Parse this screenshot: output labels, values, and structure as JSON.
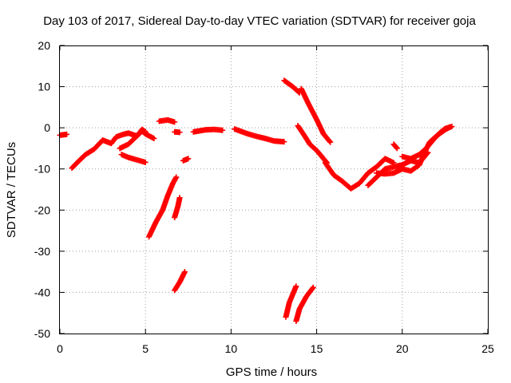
{
  "chart_data": {
    "type": "scatter",
    "title": "Day 103 of 2017, Sidereal Day-to-day VTEC variation (SDTVAR) for receiver goja",
    "xlabel": "GPS time / hours",
    "ylabel": "SDTVAR / TECUs",
    "xlim": [
      0,
      25
    ],
    "ylim": [
      -50,
      20
    ],
    "xticks": [
      0,
      5,
      10,
      15,
      20,
      25
    ],
    "yticks": [
      -50,
      -40,
      -30,
      -20,
      -10,
      0,
      10,
      20
    ],
    "grid": true,
    "marker": "plus",
    "color": "#ff0000",
    "series": [
      {
        "segments": [
          [
            [
              0.0,
              -1.8
            ],
            [
              0.4,
              -1.6
            ]
          ],
          [
            [
              0.7,
              -9.8
            ],
            [
              1.0,
              -8.5
            ],
            [
              1.5,
              -6.5
            ],
            [
              2.0,
              -5.2
            ],
            [
              2.5,
              -3.0
            ],
            [
              3.0,
              -3.8
            ],
            [
              3.3,
              -2.2
            ],
            [
              3.7,
              -1.6
            ],
            [
              4.0,
              -1.3
            ],
            [
              4.5,
              -2.0
            ],
            [
              4.8,
              -0.8
            ],
            [
              5.0,
              -1.5
            ],
            [
              5.5,
              -2.6
            ]
          ],
          [
            [
              3.5,
              -5.0
            ],
            [
              4.0,
              -4.0
            ],
            [
              4.5,
              -2.0
            ],
            [
              4.8,
              -0.4
            ],
            [
              5.0,
              -1.0
            ]
          ],
          [
            [
              3.6,
              -6.5
            ],
            [
              4.0,
              -7.2
            ],
            [
              4.5,
              -7.8
            ],
            [
              5.0,
              -8.4
            ]
          ],
          [
            [
              5.8,
              1.6
            ],
            [
              6.3,
              1.9
            ],
            [
              6.7,
              1.4
            ]
          ],
          [
            [
              6.7,
              -1.0
            ],
            [
              7.0,
              -1.1
            ]
          ],
          [
            [
              7.5,
              -7.5
            ],
            [
              7.2,
              -8.0
            ]
          ],
          [
            [
              7.8,
              -1.0
            ],
            [
              8.5,
              -0.5
            ],
            [
              9.0,
              -0.4
            ],
            [
              9.5,
              -0.6
            ]
          ],
          [
            [
              10.2,
              -0.3
            ],
            [
              11.0,
              -1.5
            ],
            [
              11.5,
              -2.1
            ],
            [
              12.0,
              -2.6
            ],
            [
              12.5,
              -3.2
            ],
            [
              13.1,
              -3.4
            ]
          ],
          [
            [
              5.2,
              -26.5
            ],
            [
              5.6,
              -23.0
            ],
            [
              6.0,
              -20.0
            ],
            [
              6.3,
              -16.5
            ],
            [
              6.6,
              -13.5
            ],
            [
              6.8,
              -12.0
            ]
          ],
          [
            [
              6.7,
              -21.8
            ],
            [
              6.9,
              -19.0
            ],
            [
              7.0,
              -17.0
            ]
          ],
          [
            [
              6.7,
              -39.5
            ],
            [
              7.0,
              -37.5
            ],
            [
              7.3,
              -35.0
            ]
          ],
          [
            [
              13.2,
              -46.0
            ],
            [
              13.4,
              -42.5
            ],
            [
              13.8,
              -38.5
            ]
          ],
          [
            [
              13.8,
              -47.0
            ],
            [
              14.0,
              -44.0
            ],
            [
              14.4,
              -41.0
            ],
            [
              14.8,
              -38.8
            ]
          ],
          [
            [
              13.1,
              11.5
            ],
            [
              13.6,
              10.0
            ],
            [
              14.0,
              8.5
            ]
          ],
          [
            [
              14.1,
              9.5
            ],
            [
              14.5,
              6.0
            ],
            [
              15.0,
              2.0
            ],
            [
              15.4,
              -1.5
            ],
            [
              15.8,
              -3.5
            ]
          ],
          [
            [
              13.9,
              0.5
            ],
            [
              14.3,
              -2.0
            ],
            [
              14.6,
              -4.0
            ],
            [
              15.0,
              -5.5
            ],
            [
              15.3,
              -7.0
            ],
            [
              15.6,
              -8.5
            ]
          ],
          [
            [
              15.5,
              -8.5
            ],
            [
              16.0,
              -11.5
            ],
            [
              16.5,
              -13.0
            ],
            [
              17.0,
              -14.8
            ],
            [
              17.5,
              -13.5
            ],
            [
              18.0,
              -11.0
            ],
            [
              18.5,
              -9.5
            ],
            [
              19.0,
              -7.5
            ],
            [
              19.5,
              -8.5
            ]
          ],
          [
            [
              18.0,
              -14.0
            ],
            [
              18.5,
              -12.0
            ],
            [
              19.0,
              -10.0
            ],
            [
              19.5,
              -9.5
            ],
            [
              20.0,
              -9.0
            ],
            [
              20.5,
              -8.0
            ],
            [
              21.0,
              -8.5
            ],
            [
              21.5,
              -6.0
            ]
          ],
          [
            [
              19.5,
              -4.0
            ],
            [
              19.7,
              -5.0
            ]
          ],
          [
            [
              18.5,
              -11.0
            ],
            [
              19.0,
              -11.2
            ],
            [
              19.5,
              -11.0
            ],
            [
              20.0,
              -10.0
            ],
            [
              20.5,
              -10.5
            ],
            [
              21.0,
              -9.0
            ],
            [
              21.3,
              -6.0
            ],
            [
              21.6,
              -3.5
            ],
            [
              22.0,
              -2.0
            ],
            [
              22.5,
              -0.5
            ],
            [
              22.8,
              0.2
            ]
          ],
          [
            [
              20.0,
              -7.0
            ],
            [
              20.5,
              -7.5
            ],
            [
              21.0,
              -6.5
            ],
            [
              21.4,
              -5.0
            ],
            [
              21.8,
              -3.0
            ],
            [
              22.2,
              -1.2
            ],
            [
              22.5,
              -0.2
            ],
            [
              22.9,
              0.3
            ]
          ]
        ]
      }
    ]
  }
}
